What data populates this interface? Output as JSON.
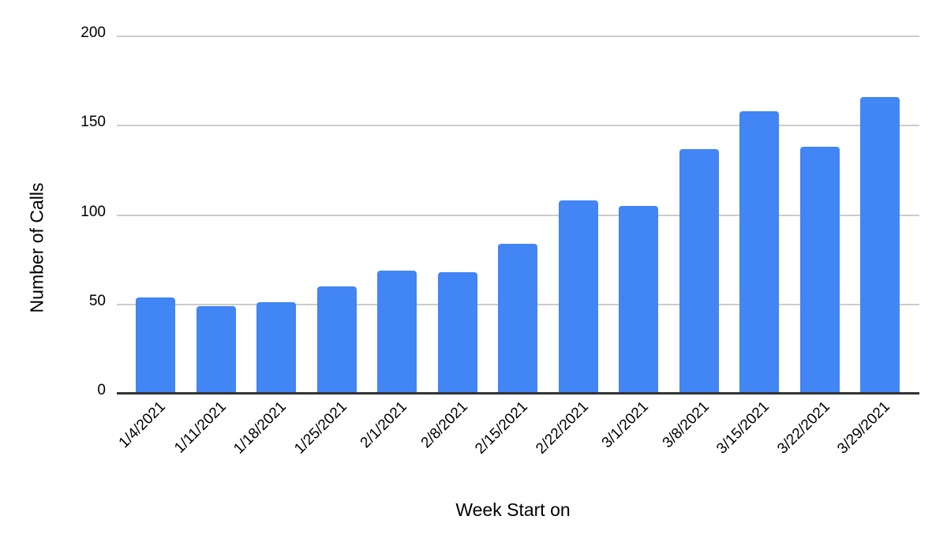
{
  "chart_data": {
    "type": "bar",
    "title": "",
    "xlabel": "Week Start on",
    "ylabel": "Number of Calls",
    "categories": [
      "1/4/2021",
      "1/11/2021",
      "1/18/2021",
      "1/25/2021",
      "2/1/2021",
      "2/8/2021",
      "2/15/2021",
      "2/22/2021",
      "3/1/2021",
      "3/8/2021",
      "3/15/2021",
      "3/22/2021",
      "3/29/2021"
    ],
    "values": [
      54,
      49,
      51,
      60,
      69,
      68,
      84,
      108,
      105,
      137,
      158,
      138,
      166
    ],
    "ylim": [
      0,
      200
    ],
    "yticks": [
      0,
      50,
      100,
      150,
      200
    ],
    "grid": "horizontal",
    "legend": "none",
    "bar_color": "#4285f4",
    "gridline_color": "#cccccc",
    "axis_line_color": "#333333",
    "text_color": "#000000",
    "background_color": "#ffffff"
  }
}
